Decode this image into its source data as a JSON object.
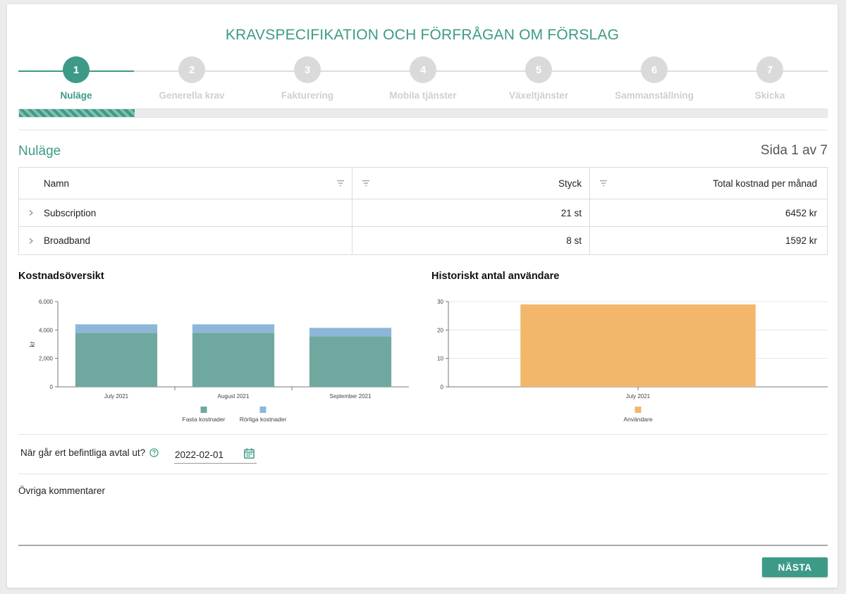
{
  "page": {
    "title": "KRAVSPECIFIKATION OCH FÖRFRÅGAN OM FÖRSLAG",
    "accent_color": "#3d9a86",
    "inactive_color": "#dadada"
  },
  "stepper": {
    "current_step": 1,
    "progress": 0.1429,
    "steps": [
      {
        "number": "1",
        "label": "Nuläge",
        "state": "active"
      },
      {
        "number": "2",
        "label": "Generella krav",
        "state": "inactive"
      },
      {
        "number": "3",
        "label": "Fakturering",
        "state": "inactive"
      },
      {
        "number": "4",
        "label": "Mobila tjänster",
        "state": "inactive"
      },
      {
        "number": "5",
        "label": "Växeltjänster",
        "state": "inactive"
      },
      {
        "number": "6",
        "label": "Sammanställning",
        "state": "inactive"
      },
      {
        "number": "7",
        "label": "Skicka",
        "state": "inactive"
      }
    ]
  },
  "section": {
    "title": "Nuläge",
    "page_indicator": "Sida 1 av 7"
  },
  "table": {
    "headers": [
      "Namn",
      "Styck",
      "Total kostnad per månad"
    ],
    "rows": [
      {
        "name": "Subscription",
        "count": "21 st",
        "cost": "6452 kr"
      },
      {
        "name": "Broadband",
        "count": "8 st",
        "cost": "1592 kr"
      }
    ]
  },
  "chart_data": [
    {
      "type": "bar",
      "stacked": true,
      "title": "Kostnadsöversikt",
      "ylabel": "kr",
      "xlabel": "",
      "ylim": [
        0,
        6000
      ],
      "yticks": [
        0,
        2000,
        4000,
        6000
      ],
      "ytick_labels": [
        "0",
        "2,000",
        "4,000",
        "6,000"
      ],
      "categories": [
        "July 2021",
        "August 2021",
        "September 2021"
      ],
      "series": [
        {
          "name": "Fasta kostnader",
          "color": "#6fa89f",
          "values": [
            3800,
            3800,
            3550
          ]
        },
        {
          "name": "Rörliga kostnader",
          "color": "#8db6d8",
          "values": [
            600,
            600,
            600
          ]
        }
      ],
      "legend_position": "bottom"
    },
    {
      "type": "bar",
      "title": "Historiskt antal användare",
      "xlabel": "",
      "ylabel": "",
      "ylim": [
        0,
        30
      ],
      "yticks": [
        0,
        10,
        20,
        30
      ],
      "ytick_labels": [
        "0",
        "10",
        "20",
        "30"
      ],
      "categories": [
        "July 2021"
      ],
      "series": [
        {
          "name": "Användare",
          "color": "#f3b76c",
          "values": [
            29
          ]
        }
      ],
      "legend_position": "bottom",
      "grid": true
    }
  ],
  "form": {
    "contract_question": "När går ert befintliga avtal ut?",
    "contract_date": "2022-02-01",
    "comments_label": "Övriga kommentarer",
    "comments_value": ""
  },
  "actions": {
    "next_label": "NÄSTA"
  },
  "icons": {
    "filter": "filter-icon",
    "expand": "chevron-right-icon",
    "help": "help-circle-icon",
    "calendar": "calendar-icon"
  }
}
